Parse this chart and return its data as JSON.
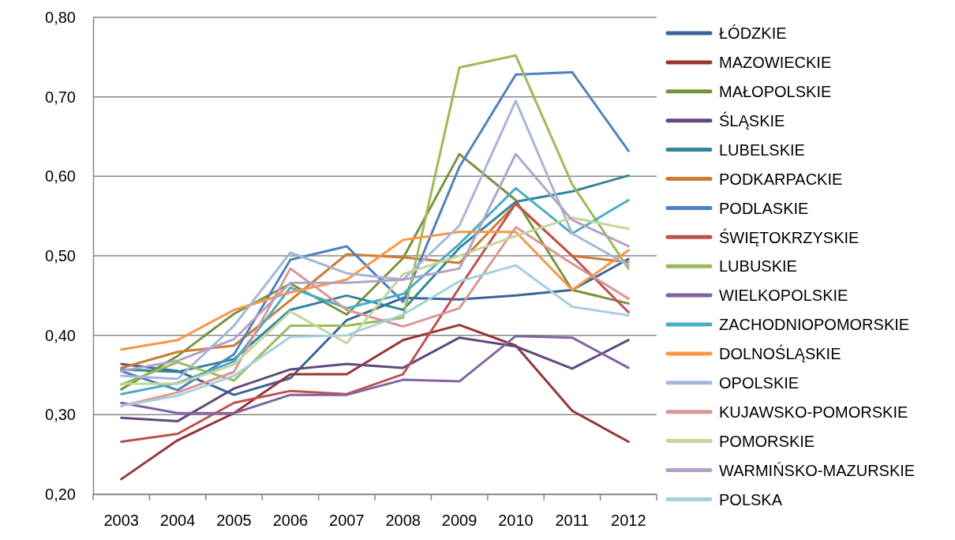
{
  "chart_data": {
    "type": "line",
    "categories": [
      "2003",
      "2004",
      "2005",
      "2006",
      "2007",
      "2008",
      "2009",
      "2010",
      "2011",
      "2012"
    ],
    "ylim": [
      0.2,
      0.8
    ],
    "yticks": [
      {
        "value": 0.2,
        "label": "0,20"
      },
      {
        "value": 0.3,
        "label": "0,30"
      },
      {
        "value": 0.4,
        "label": "0,40"
      },
      {
        "value": 0.5,
        "label": "0,50"
      },
      {
        "value": 0.6,
        "label": "0,60"
      },
      {
        "value": 0.7,
        "label": "0,70"
      },
      {
        "value": 0.8,
        "label": "0,80"
      }
    ],
    "grid": "y",
    "legend": "right",
    "line_style": "solid",
    "series": [
      {
        "name": "ŁÓDZKIE",
        "color": "#3a6496",
        "values": [
          0.364,
          0.355,
          0.325,
          0.346,
          0.419,
          0.447,
          0.445,
          0.45,
          0.457,
          0.496
        ]
      },
      {
        "name": "MAZOWIECKIE",
        "color": "#953735",
        "values": [
          0.219,
          0.268,
          0.302,
          0.351,
          0.351,
          0.394,
          0.413,
          0.387,
          0.305,
          0.266
        ]
      },
      {
        "name": "MAŁOPOLSKIE",
        "color": "#77933c",
        "values": [
          0.332,
          0.374,
          0.427,
          0.465,
          0.426,
          0.497,
          0.628,
          0.57,
          0.457,
          0.44
        ]
      },
      {
        "name": "ŚLĄSKIE",
        "color": "#604a7b",
        "values": [
          0.296,
          0.292,
          0.333,
          0.357,
          0.364,
          0.359,
          0.397,
          0.386,
          0.358,
          0.394
        ]
      },
      {
        "name": "LUBELSKIE",
        "color": "#31859c",
        "values": [
          0.357,
          0.354,
          0.37,
          0.432,
          0.45,
          0.432,
          0.51,
          0.568,
          0.581,
          0.601
        ]
      },
      {
        "name": "PODKARPACKIE",
        "color": "#cd7a34",
        "values": [
          0.359,
          0.379,
          0.387,
          0.444,
          0.502,
          0.498,
          0.491,
          0.565,
          0.5,
          0.492
        ]
      },
      {
        "name": "PODLASKIE",
        "color": "#4f81bd",
        "values": [
          0.355,
          0.331,
          0.376,
          0.495,
          0.512,
          0.442,
          0.612,
          0.728,
          0.731,
          0.632
        ]
      },
      {
        "name": "ŚWIĘTOKRZYSKIE",
        "color": "#c0504d",
        "values": [
          0.266,
          0.276,
          0.315,
          0.33,
          0.326,
          0.351,
          0.46,
          0.566,
          0.5,
          0.429
        ]
      },
      {
        "name": "LUBUSKIE",
        "color": "#9bbb59",
        "values": [
          0.338,
          0.366,
          0.343,
          0.412,
          0.412,
          0.422,
          0.737,
          0.752,
          0.59,
          0.484
        ]
      },
      {
        "name": "WIELKOPOLSKIE",
        "color": "#8064a2",
        "values": [
          0.315,
          0.302,
          0.302,
          0.325,
          0.325,
          0.344,
          0.342,
          0.399,
          0.397,
          0.359
        ]
      },
      {
        "name": "ZACHODNIOPOMORSKIE",
        "color": "#4bacc6",
        "values": [
          0.326,
          0.34,
          0.367,
          0.46,
          0.434,
          0.452,
          0.515,
          0.585,
          0.528,
          0.57
        ]
      },
      {
        "name": "DOLNOŚLĄSKIE",
        "color": "#f79646",
        "values": [
          0.382,
          0.394,
          0.432,
          0.454,
          0.47,
          0.52,
          0.53,
          0.53,
          0.457,
          0.507
        ]
      },
      {
        "name": "OPOLSKIE",
        "color": "#a5b6d8",
        "values": [
          0.349,
          0.345,
          0.412,
          0.504,
          0.478,
          0.47,
          0.538,
          0.695,
          0.528,
          0.488
        ]
      },
      {
        "name": "KUJAWSKO-POMORSKIE",
        "color": "#d99694",
        "values": [
          0.311,
          0.328,
          0.354,
          0.484,
          0.432,
          0.411,
          0.434,
          0.536,
          0.49,
          0.446
        ]
      },
      {
        "name": "POMORSKIE",
        "color": "#c3d69b",
        "values": [
          0.339,
          0.339,
          0.363,
          0.43,
          0.39,
          0.477,
          0.5,
          0.525,
          0.548,
          0.534
        ]
      },
      {
        "name": "WARMIŃSKO-MAZURSKIE",
        "color": "#b3a2c7",
        "values": [
          0.355,
          0.368,
          0.395,
          0.466,
          0.466,
          0.47,
          0.484,
          0.628,
          0.545,
          0.512
        ]
      },
      {
        "name": "POLSKA",
        "color": "#a5d0dc",
        "values": [
          0.311,
          0.324,
          0.349,
          0.398,
          0.4,
          0.426,
          0.468,
          0.488,
          0.436,
          0.425
        ]
      }
    ]
  }
}
